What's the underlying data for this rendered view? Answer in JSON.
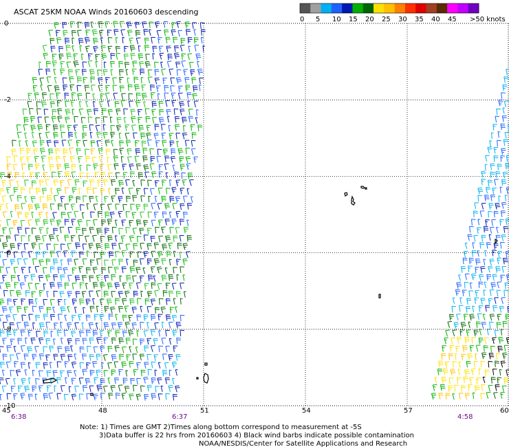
{
  "title": "ASCAT 25KM NOAA Winds 20160603 descending",
  "legend": {
    "colors": [
      "#555555",
      "#a0a0a0",
      "#00b0f0",
      "#2060ff",
      "#0018b0",
      "#00b000",
      "#006400",
      "#ffe000",
      "#ffc000",
      "#ff8000",
      "#ff3000",
      "#e00000",
      "#a04020",
      "#5a2a00",
      "#ff00ff",
      "#c000ff",
      "#7000c0"
    ],
    "labels": [
      "0",
      "5",
      "10",
      "15",
      "20",
      "25",
      "30",
      "35",
      "40",
      "45",
      ">50 knots"
    ]
  },
  "axes": {
    "lat_labels": [
      "0",
      "-2",
      "-4",
      "-6",
      "-8",
      "-10"
    ],
    "lon_labels": [
      "45",
      "48",
      "51",
      "54",
      "57",
      "60"
    ]
  },
  "times": [
    "6:38",
    "6:37",
    "4:58"
  ],
  "notes": {
    "line1": "Note: 1) Times are GMT 2)Times along bottom correspond to measurement at -5S",
    "line2": "3)Data buffer is 22 hrs from 20160603 4) Black wind barbs indicate possible contamination",
    "line3": "NOAA/NESDIS/Center for Satellite Applications and Research"
  },
  "map_data": {
    "region": {
      "lon": [
        45,
        60
      ],
      "lat": [
        -10,
        0
      ]
    },
    "grid_lons": [
      48,
      51,
      54,
      57
    ],
    "grid_lats": [
      -2,
      -4,
      -6,
      -8
    ],
    "wind_speed_zones_knots": {
      "west_swath_north": [
        15,
        20
      ],
      "west_swath_center": [
        15,
        20
      ],
      "west_swath_yellow_band": [
        20,
        25
      ],
      "west_swath_south": [
        10,
        20
      ],
      "east_swath_north": [
        5,
        15
      ],
      "east_swath_south": [
        15,
        25
      ]
    }
  }
}
